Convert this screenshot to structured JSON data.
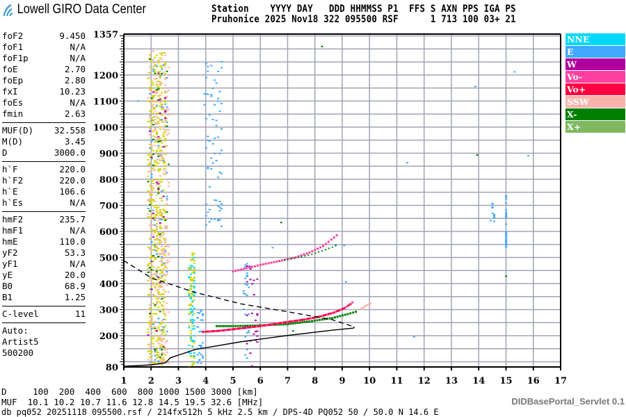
{
  "header": {
    "logo_text": "Lowell GIRO Data Center",
    "line1": "Station    YYYY DAY   DDD HHMMSS P1  FFS S AXN PPS IGA PS",
    "line2": "Pruhonice 2025 Nov18 322 095500 RSF      1 713 100 03+ 21"
  },
  "params": {
    "group1": [
      [
        "foF2",
        "9.450"
      ],
      [
        "foF1",
        "N/A"
      ],
      [
        "foF1p",
        "N/A"
      ],
      [
        "foE",
        "2.70"
      ],
      [
        "foEp",
        "2.80"
      ],
      [
        "fxI",
        "10.23"
      ],
      [
        "foEs",
        "N/A"
      ],
      [
        "fmin",
        "2.63"
      ]
    ],
    "group2": [
      [
        "MUF(D)",
        "32.558"
      ],
      [
        "M(D)",
        "3.45"
      ],
      [
        "D",
        "3000.0"
      ]
    ],
    "group3": [
      [
        "h`F",
        "220.0"
      ],
      [
        "h`F2",
        "220.0"
      ],
      [
        "h`E",
        "106.6"
      ],
      [
        "h`Es",
        "N/A"
      ]
    ],
    "group4": [
      [
        "hmF2",
        "235.7"
      ],
      [
        "hmF1",
        "N/A"
      ],
      [
        "hmE",
        "110.0"
      ],
      [
        "yF2",
        "53.3"
      ],
      [
        "yF1",
        "N/A"
      ],
      [
        "yE",
        "20.0"
      ],
      [
        "B0",
        "68.9"
      ],
      [
        "B1",
        "1.25"
      ]
    ],
    "group5": [
      [
        "C-level",
        "11"
      ]
    ],
    "auto": [
      "Auto:",
      "Artist5",
      "500200"
    ]
  },
  "legend": [
    {
      "label": "NNE",
      "color": "#00d8ff"
    },
    {
      "label": "E",
      "color": "#40a8ff"
    },
    {
      "label": "W",
      "color": "#b000a0"
    },
    {
      "label": "Vo-",
      "color": "#ff40a0"
    },
    {
      "label": "Vo+",
      "color": "#ff0040"
    },
    {
      "label": "SSW",
      "color": "#f8b4ac"
    },
    {
      "label": "X-",
      "color": "#008000"
    },
    {
      "label": "X+",
      "color": "#80b860"
    }
  ],
  "chart_data": {
    "type": "scatter",
    "xlim": [
      1,
      17
    ],
    "ylim": [
      80,
      1357
    ],
    "x_ticks": [
      "1",
      "2",
      "3",
      "4",
      "5",
      "6",
      "7",
      "8",
      "9",
      "10",
      "11",
      "12",
      "13",
      "14",
      "15",
      "16",
      "17"
    ],
    "y_ticks": [
      "1357",
      "1200",
      "1100",
      "1000",
      "900",
      "800",
      "700",
      "600",
      "500",
      "400",
      "300",
      "200",
      "80"
    ],
    "grid": true,
    "grid_x_step_mhz": 1,
    "grid_y_step_km": 50,
    "o_trace": [
      [
        3.9,
        216
      ],
      [
        4.5,
        220
      ],
      [
        5.25,
        229
      ],
      [
        6.0,
        238
      ],
      [
        6.94,
        253
      ],
      [
        7.6,
        263
      ],
      [
        8.2,
        275
      ],
      [
        8.7,
        290
      ],
      [
        9.08,
        307
      ],
      [
        9.3,
        322
      ],
      [
        9.45,
        336
      ]
    ],
    "x_trace": [
      [
        4.4,
        238
      ],
      [
        5.0,
        238
      ],
      [
        5.8,
        240
      ],
      [
        6.94,
        245
      ],
      [
        7.8,
        256
      ],
      [
        8.64,
        269
      ],
      [
        9.2,
        284
      ],
      [
        9.6,
        296
      ]
    ],
    "ssw_trace": [
      [
        9.7,
        305
      ],
      [
        9.9,
        318
      ],
      [
        10.1,
        328
      ]
    ],
    "second_hop_o": [
      [
        5.0,
        448
      ],
      [
        5.5,
        460
      ],
      [
        6.1,
        475
      ],
      [
        6.8,
        490
      ],
      [
        7.3,
        502
      ],
      [
        7.8,
        520
      ],
      [
        8.3,
        545
      ],
      [
        8.9,
        595
      ]
    ],
    "second_hop_x": [
      [
        6.9,
        490
      ],
      [
        7.4,
        500
      ],
      [
        7.9,
        512
      ],
      [
        8.4,
        530
      ],
      [
        8.9,
        550
      ]
    ],
    "profile_dashed_upper": [
      [
        1,
        488
      ],
      [
        2.02,
        421
      ],
      [
        3.55,
        368
      ],
      [
        5.25,
        323
      ],
      [
        6.94,
        293
      ],
      [
        8.64,
        261
      ],
      [
        9.41,
        235
      ]
    ],
    "profile_lower": [
      [
        1,
        83
      ],
      [
        2.0,
        88
      ],
      [
        2.53,
        96
      ],
      [
        2.7,
        115
      ],
      [
        3.62,
        147
      ],
      [
        5.25,
        176
      ],
      [
        6.94,
        200
      ],
      [
        8.64,
        221
      ],
      [
        9.41,
        229
      ],
      [
        9.45,
        234
      ]
    ],
    "noise_streaks": [
      {
        "f": [
          1.9,
          2.55
        ],
        "h": [
          90,
          1290
        ],
        "color": "#d4d400",
        "n": 500
      },
      {
        "f": [
          1.9,
          2.65
        ],
        "h": [
          90,
          1300
        ],
        "color": "#f8b4ac",
        "n": 300
      },
      {
        "f": [
          1.9,
          2.6
        ],
        "h": [
          100,
          1280
        ],
        "color": "#40a8ff",
        "n": 60
      },
      {
        "f": [
          1.9,
          2.6
        ],
        "h": [
          100,
          1280
        ],
        "color": "#008000",
        "n": 40
      },
      {
        "f": [
          1.9,
          2.6
        ],
        "h": [
          100,
          1280
        ],
        "color": "#b000a0",
        "n": 30
      },
      {
        "f": [
          3.4,
          3.6
        ],
        "h": [
          85,
          520
        ],
        "color": "#00d8ff",
        "n": 80
      },
      {
        "f": [
          3.4,
          3.6
        ],
        "h": [
          85,
          520
        ],
        "color": "#d4d400",
        "n": 60
      },
      {
        "f": [
          3.7,
          3.9
        ],
        "h": [
          85,
          300
        ],
        "color": "#40a8ff",
        "n": 30
      },
      {
        "f": [
          3.95,
          4.6
        ],
        "h": [
          620,
          1260
        ],
        "color": "#40a8ff",
        "n": 70
      },
      {
        "f": [
          5.4,
          5.6
        ],
        "h": [
          85,
          480
        ],
        "color": "#40a8ff",
        "n": 30
      },
      {
        "f": [
          5.4,
          5.9
        ],
        "h": [
          85,
          480
        ],
        "color": "#b000a0",
        "n": 25
      },
      {
        "f": [
          14.5,
          14.55
        ],
        "h": [
          630,
          720
        ],
        "color": "#40a8ff",
        "n": 10
      },
      {
        "f": [
          15.0,
          15.02
        ],
        "h": [
          530,
          760
        ],
        "color": "#40a8ff",
        "n": 25
      },
      {
        "f": [
          1,
          17
        ],
        "h": [
          85,
          1340
        ],
        "color": "#40a8ff",
        "n": 12
      },
      {
        "f": [
          1,
          17
        ],
        "h": [
          85,
          1340
        ],
        "color": "#008000",
        "n": 6
      }
    ]
  },
  "bottom": {
    "d_row": "D     100  200  400  600  800 1000 1500 3000 [km]",
    "muf_row": "MUF  10.1 10.2 10.7 11.6 12.8 14.5 19.5 32.6 [MHz]",
    "info": "db pq052 20251118 095500.rsf / 214fx512h 5 kHz 2.5 km / DPS-4D PQ052 50 / 50.0 N 14.6 E",
    "servlet": "DIDBasePortal_Servlet 0.1"
  }
}
